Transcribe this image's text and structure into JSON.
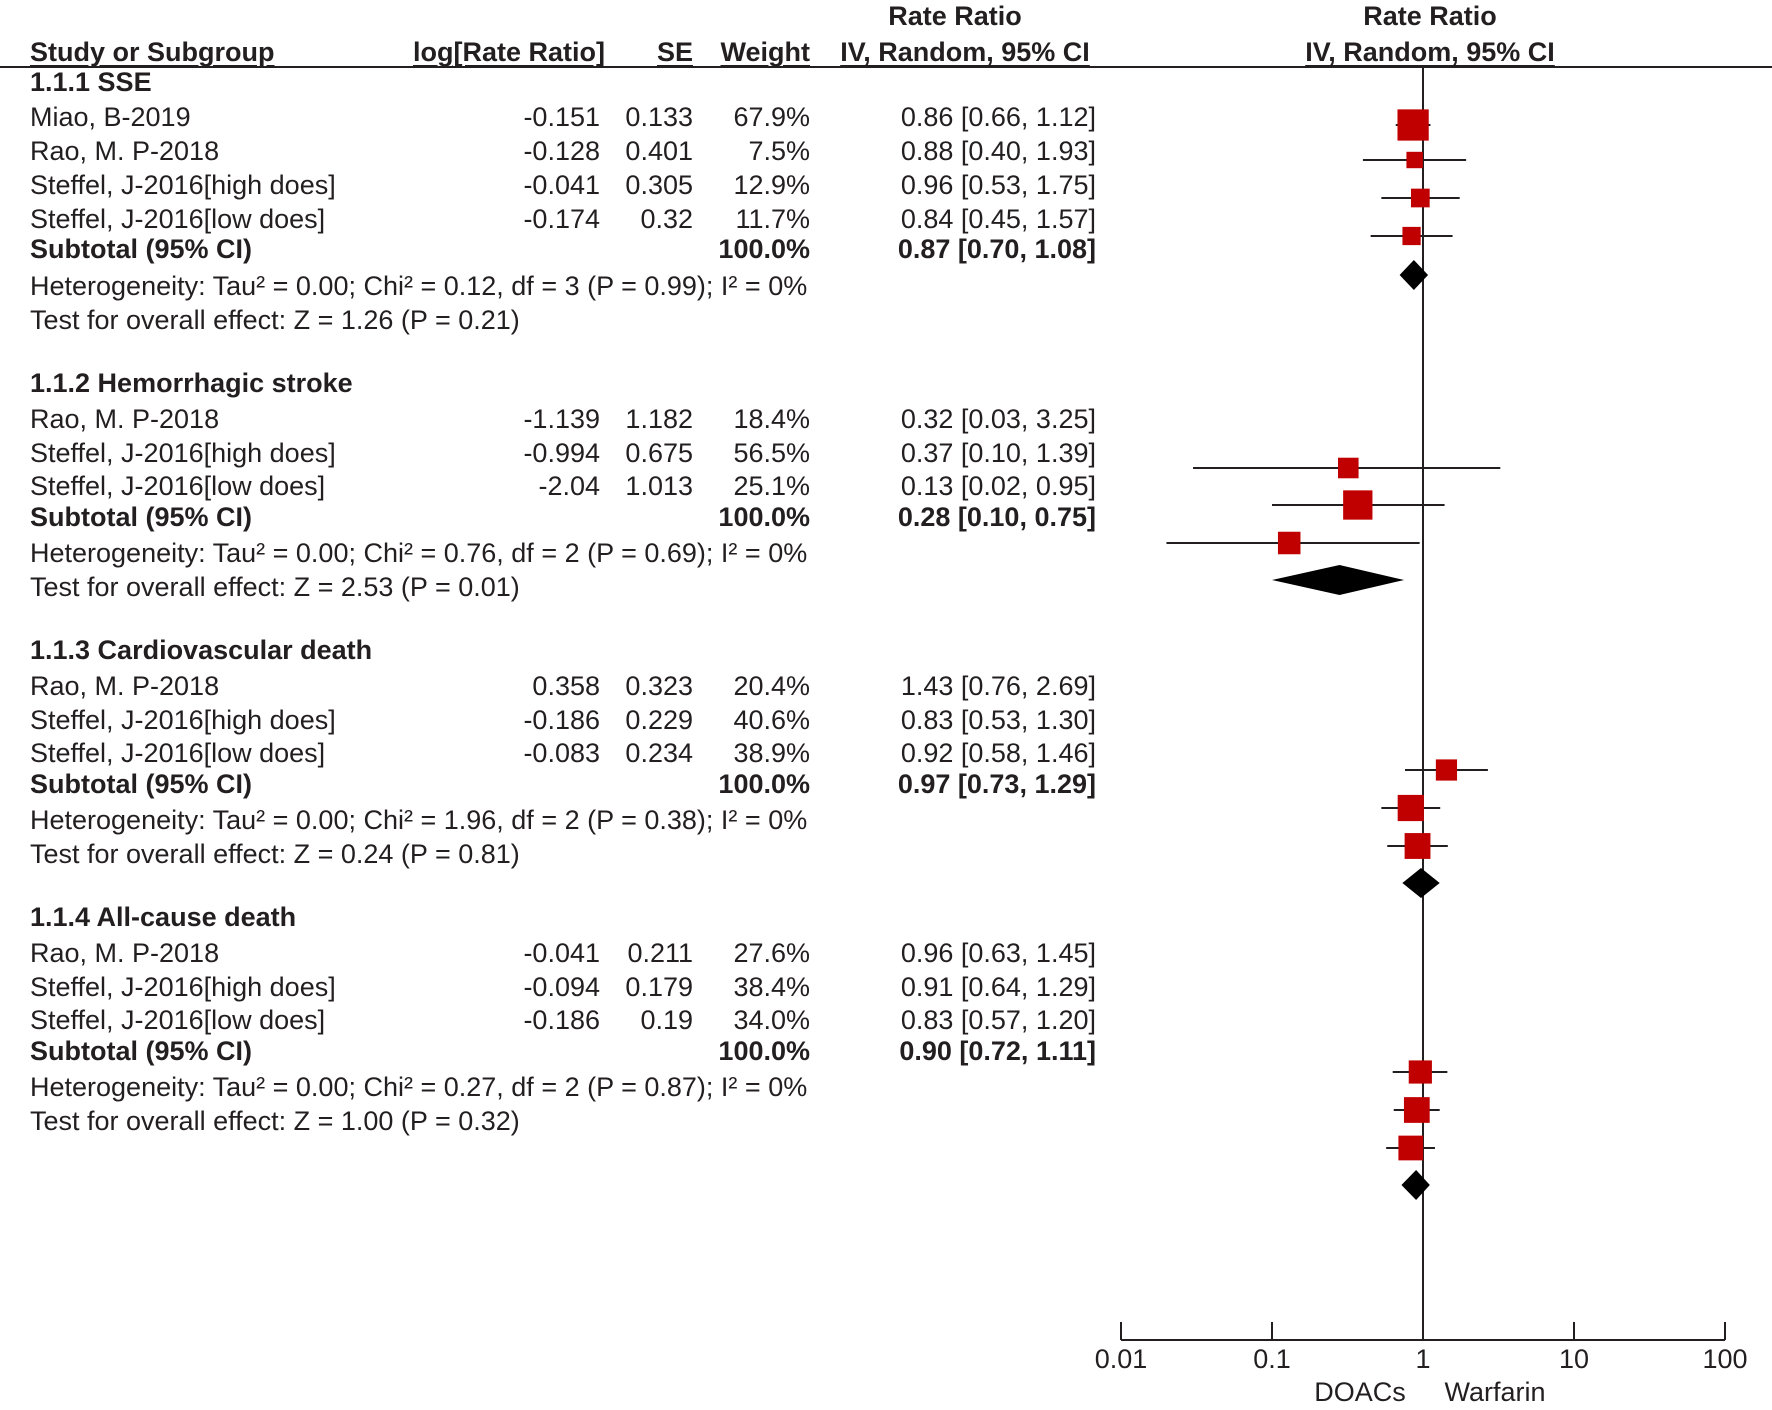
{
  "header": {
    "study_col": "Study or Subgroup",
    "log_col": "log[Rate Ratio]",
    "se_col": "SE",
    "weight_col": "Weight",
    "rr_title": "Rate Ratio",
    "rr_method": "IV, Random, 95% CI",
    "plot_title": "Rate Ratio",
    "plot_method": "IV, Random, 95% CI"
  },
  "axis": {
    "ticks": [
      "0.01",
      "0.1",
      "1",
      "10",
      "100"
    ],
    "favours_left": "DOACs",
    "favours_right": "Warfarin"
  },
  "colors": {
    "marker": "#c00000",
    "line": "#231f20"
  },
  "chart_data": {
    "type": "forest",
    "scale": "log",
    "xlim": [
      0.01,
      100
    ],
    "null_value": 1,
    "subgroups": [
      {
        "title": "1.1.1 SSE",
        "studies": [
          {
            "name": "Miao, B-2019",
            "log_rr": "-0.151",
            "se": "0.133",
            "weight": "67.9%",
            "ci_text": "0.86 [0.66, 1.12]",
            "est": 0.86,
            "lo": 0.66,
            "hi": 1.12,
            "w": 67.9
          },
          {
            "name": "Rao, M. P-2018",
            "log_rr": "-0.128",
            "se": "0.401",
            "weight": "7.5%",
            "ci_text": "0.88 [0.40, 1.93]",
            "est": 0.88,
            "lo": 0.4,
            "hi": 1.93,
            "w": 7.5
          },
          {
            "name": "Steffel, J-2016[high does]",
            "log_rr": "-0.041",
            "se": "0.305",
            "weight": "12.9%",
            "ci_text": "0.96 [0.53, 1.75]",
            "est": 0.96,
            "lo": 0.53,
            "hi": 1.75,
            "w": 12.9
          },
          {
            "name": "Steffel, J-2016[low does]",
            "log_rr": "-0.174",
            "se": "0.32",
            "weight": "11.7%",
            "ci_text": "0.84 [0.45, 1.57]",
            "est": 0.84,
            "lo": 0.45,
            "hi": 1.57,
            "w": 11.7
          }
        ],
        "subtotal": {
          "label": "Subtotal (95% CI)",
          "weight": "100.0%",
          "ci_text": "0.87 [0.70, 1.08]",
          "est": 0.87,
          "lo": 0.7,
          "hi": 1.08
        },
        "heterogeneity": "Heterogeneity: Tau² = 0.00; Chi² = 0.12, df = 3 (P = 0.99); I² = 0%",
        "overall": "Test for overall effect: Z = 1.26 (P = 0.21)"
      },
      {
        "title": "1.1.2 Hemorrhagic stroke",
        "studies": [
          {
            "name": "Rao, M. P-2018",
            "log_rr": "-1.139",
            "se": "1.182",
            "weight": "18.4%",
            "ci_text": "0.32 [0.03, 3.25]",
            "est": 0.32,
            "lo": 0.03,
            "hi": 3.25,
            "w": 18.4
          },
          {
            "name": "Steffel, J-2016[high does]",
            "log_rr": "-0.994",
            "se": "0.675",
            "weight": "56.5%",
            "ci_text": "0.37 [0.10, 1.39]",
            "est": 0.37,
            "lo": 0.1,
            "hi": 1.39,
            "w": 56.5
          },
          {
            "name": "Steffel, J-2016[low does]",
            "log_rr": "-2.04",
            "se": "1.013",
            "weight": "25.1%",
            "ci_text": "0.13 [0.02, 0.95]",
            "est": 0.13,
            "lo": 0.02,
            "hi": 0.95,
            "w": 25.1
          }
        ],
        "subtotal": {
          "label": "Subtotal (95% CI)",
          "weight": "100.0%",
          "ci_text": "0.28 [0.10, 0.75]",
          "est": 0.28,
          "lo": 0.1,
          "hi": 0.75
        },
        "heterogeneity": "Heterogeneity: Tau² = 0.00; Chi² = 0.76, df = 2 (P = 0.69); I² = 0%",
        "overall": "Test for overall effect: Z = 2.53 (P = 0.01)"
      },
      {
        "title": "1.1.3 Cardiovascular death",
        "studies": [
          {
            "name": "Rao, M. P-2018",
            "log_rr": "0.358",
            "se": "0.323",
            "weight": "20.4%",
            "ci_text": "1.43 [0.76, 2.69]",
            "est": 1.43,
            "lo": 0.76,
            "hi": 2.69,
            "w": 20.4
          },
          {
            "name": "Steffel, J-2016[high does]",
            "log_rr": "-0.186",
            "se": "0.229",
            "weight": "40.6%",
            "ci_text": "0.83 [0.53, 1.30]",
            "est": 0.83,
            "lo": 0.53,
            "hi": 1.3,
            "w": 40.6
          },
          {
            "name": "Steffel, J-2016[low does]",
            "log_rr": "-0.083",
            "se": "0.234",
            "weight": "38.9%",
            "ci_text": "0.92 [0.58, 1.46]",
            "est": 0.92,
            "lo": 0.58,
            "hi": 1.46,
            "w": 38.9
          }
        ],
        "subtotal": {
          "label": "Subtotal (95% CI)",
          "weight": "100.0%",
          "ci_text": "0.97 [0.73, 1.29]",
          "est": 0.97,
          "lo": 0.73,
          "hi": 1.29
        },
        "heterogeneity": "Heterogeneity: Tau² = 0.00; Chi² = 1.96, df = 2 (P = 0.38); I² = 0%",
        "overall": "Test for overall effect: Z = 0.24 (P = 0.81)"
      },
      {
        "title": "1.1.4 All-cause death",
        "studies": [
          {
            "name": "Rao, M. P-2018",
            "log_rr": "-0.041",
            "se": "0.211",
            "weight": "27.6%",
            "ci_text": "0.96 [0.63, 1.45]",
            "est": 0.96,
            "lo": 0.63,
            "hi": 1.45,
            "w": 27.6
          },
          {
            "name": "Steffel, J-2016[high does]",
            "log_rr": "-0.094",
            "se": "0.179",
            "weight": "38.4%",
            "ci_text": "0.91 [0.64, 1.29]",
            "est": 0.91,
            "lo": 0.64,
            "hi": 1.29,
            "w": 38.4
          },
          {
            "name": "Steffel, J-2016[low does]",
            "log_rr": "-0.186",
            "se": "0.19",
            "weight": "34.0%",
            "ci_text": "0.83 [0.57, 1.20]",
            "est": 0.83,
            "lo": 0.57,
            "hi": 1.2,
            "w": 34.0
          }
        ],
        "subtotal": {
          "label": "Subtotal (95% CI)",
          "weight": "100.0%",
          "ci_text": "0.90 [0.72, 1.11]",
          "est": 0.9,
          "lo": 0.72,
          "hi": 1.11
        },
        "heterogeneity": "Heterogeneity: Tau² = 0.00; Chi² = 0.27, df = 2 (P = 0.87); I² = 0%",
        "overall": "Test for overall effect: Z = 1.00 (P = 0.32)"
      }
    ]
  }
}
